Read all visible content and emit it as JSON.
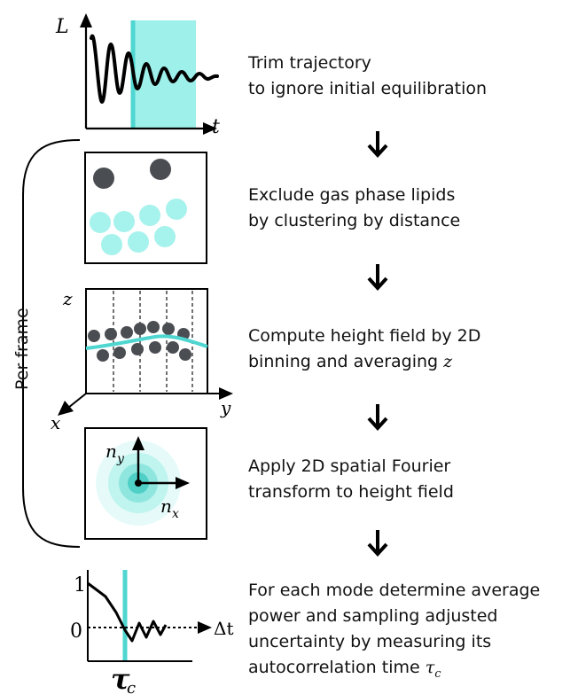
{
  "steps": [
    {
      "lines": [
        "Trim trajectory",
        "to ignore initial equilibration"
      ]
    },
    {
      "lines": [
        "Exclude gas phase lipids",
        "by clustering by distance"
      ]
    },
    {
      "lines": [
        "Compute height field by 2D",
        "binning and averaging "
      ],
      "italic_tail": "z"
    },
    {
      "lines": [
        "Apply 2D spatial Fourier",
        "transform to height field"
      ]
    },
    {
      "lines": [
        "For each mode determine average",
        "power and sampling adjusted",
        "uncertainty by measuring its",
        "autocorrelation time "
      ],
      "italic_tail": "τ",
      "subscript": "c"
    }
  ],
  "bracket_label": "Per frame",
  "panel1": {
    "y_axis": "L",
    "x_axis": "t"
  },
  "panel3": {
    "z_axis": "z",
    "x_axis": "x",
    "y_axis": "y"
  },
  "panel4": {
    "ny_label": "n",
    "ny_sub": "y",
    "nx_label": "n",
    "nx_sub": "x"
  },
  "panel5": {
    "tick_top": "1",
    "tick_zero": "0",
    "x_axis": "Δt",
    "tau_label": "τ",
    "tau_sub": "c"
  },
  "colors": {
    "accent": "#4fd6d0",
    "accent_light": "#9ef0ea",
    "particle_dark": "#4a4d52",
    "particle_light": "#a6f2ec"
  }
}
